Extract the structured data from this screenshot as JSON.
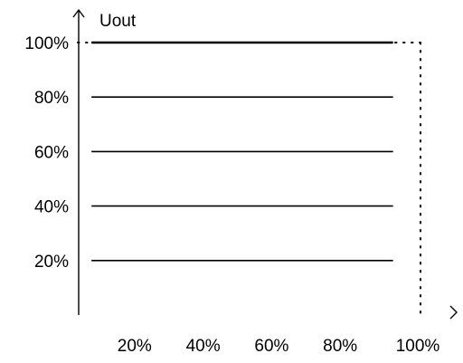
{
  "chart_data": {
    "type": "line",
    "ylabel": "Uout",
    "xlabel": "",
    "xlim": [
      0,
      100
    ],
    "ylim": [
      0,
      100
    ],
    "x_ticks": [
      "20%",
      "40%",
      "60%",
      "80%",
      "100%"
    ],
    "y_ticks": [
      "20%",
      "40%",
      "60%",
      "80%",
      "100%"
    ],
    "levels": [
      {
        "y": 20,
        "x": [
          4,
          92
        ]
      },
      {
        "y": 40,
        "x": [
          4,
          92
        ]
      },
      {
        "y": 60,
        "x": [
          4,
          92
        ]
      },
      {
        "y": 80,
        "x": [
          4,
          92
        ]
      },
      {
        "y": 100,
        "x": [
          4,
          92
        ]
      }
    ],
    "reference_lines": [
      {
        "orientation": "horizontal",
        "at": 100,
        "style": "dotted"
      },
      {
        "orientation": "vertical",
        "at": 100,
        "style": "dotted"
      }
    ],
    "grid": false,
    "legend": "none",
    "colors": {
      "line": "#000000",
      "text": "#000000",
      "background": "#ffffff"
    }
  }
}
